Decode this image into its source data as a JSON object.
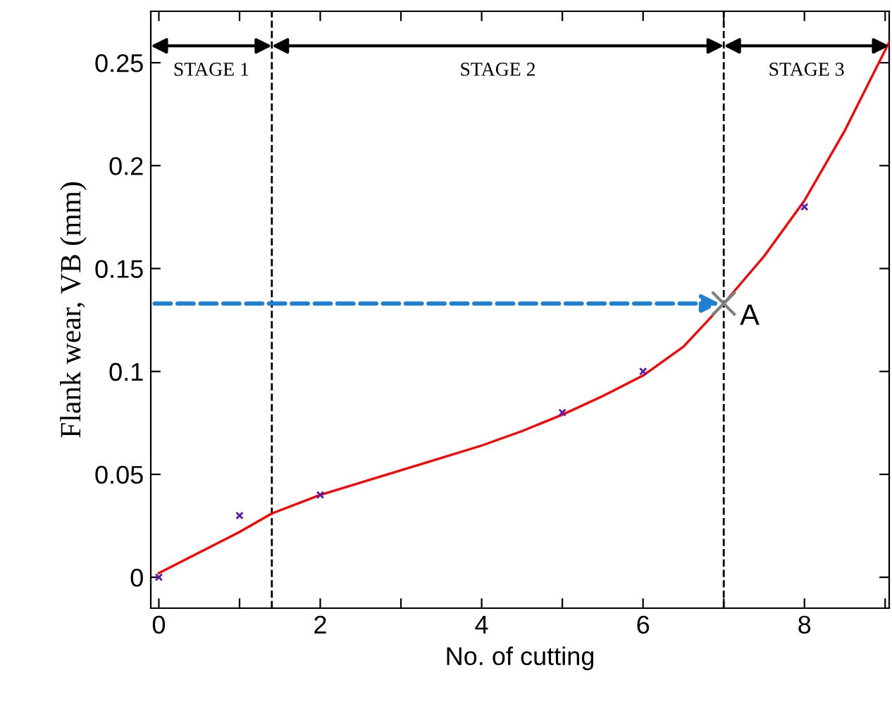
{
  "chart_data": {
    "type": "line",
    "xlabel": "No. of cutting",
    "ylabel": "Flank wear, VB (mm)",
    "xlim": [
      -0.1,
      9.05
    ],
    "ylim": [
      -0.015,
      0.275
    ],
    "xticks": [
      0,
      {
        "value": 1,
        "label": null
      },
      2,
      {
        "value": 3,
        "label": null
      },
      4,
      {
        "value": 5,
        "label": null
      },
      6,
      {
        "value": 7,
        "label": null
      },
      8,
      {
        "value": 9,
        "label": null
      }
    ],
    "yticks": [
      0,
      0.05,
      0.1,
      0.15,
      0.2,
      0.25
    ],
    "series": [
      {
        "type": "scatter",
        "color": "#5a1ab0",
        "marker": "cross",
        "x": [
          0,
          1,
          2,
          5,
          6,
          8
        ],
        "values": [
          0,
          0.03,
          0.04,
          0.08,
          0.1,
          0.18
        ]
      },
      {
        "color": "#ff0000",
        "line_style": "solid",
        "marker": "none",
        "x": [
          0,
          0.5,
          1,
          1.4,
          2,
          2.5,
          3,
          3.5,
          4,
          4.5,
          5,
          5.5,
          6,
          6.5,
          7,
          7.5,
          8,
          8.5,
          9.05
        ],
        "values": [
          0.002,
          0.012,
          0.022,
          0.031,
          0.04,
          0.046,
          0.052,
          0.058,
          0.064,
          0.071,
          0.079,
          0.088,
          0.098,
          0.112,
          0.133,
          0.156,
          0.183,
          0.217,
          0.26
        ]
      },
      {
        "type": "scatter",
        "color": "#808080",
        "marker": "cross",
        "x": [
          7
        ],
        "values": [
          0.133
        ]
      }
    ],
    "ref_lines": [
      {
        "axis": "x",
        "value": 1.4,
        "color": "#000000",
        "line_style": "dashed"
      },
      {
        "axis": "x",
        "value": 7,
        "color": "#000000",
        "line_style": "dashed"
      }
    ],
    "annotations": [
      "STAGE 1",
      "STAGE 2",
      "STAGE 3",
      {
        "text": "A",
        "x": 7,
        "y": 0.133
      }
    ],
    "grid": false,
    "legend": false
  }
}
